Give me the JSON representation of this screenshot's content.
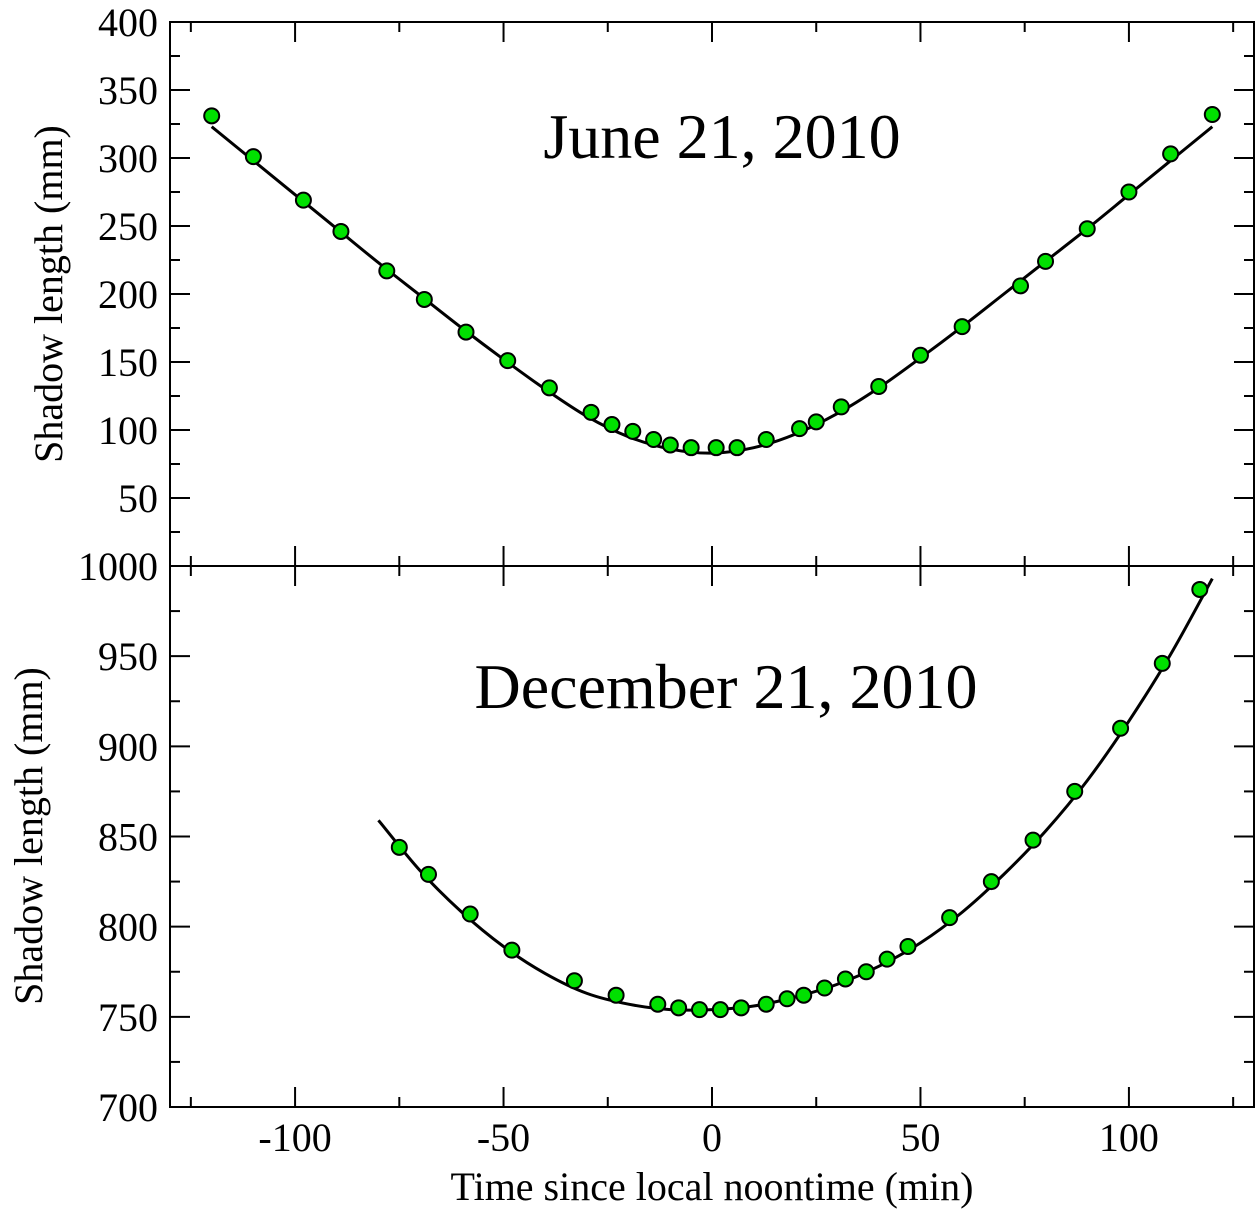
{
  "chart_data": [
    {
      "type": "scatter",
      "annotation": "June 21, 2010",
      "xlabel": "Time since local noontime (min)",
      "ylabel": "Shadow length (mm)",
      "xlim": [
        -130,
        130
      ],
      "ylim": [
        0,
        400
      ],
      "x_ticks": [
        -100,
        -50,
        0,
        50,
        100
      ],
      "y_ticks": [
        50,
        100,
        150,
        200,
        250,
        300,
        350,
        400
      ],
      "y_tick_labels": [
        "50",
        "100",
        "150",
        "200",
        "250",
        "300",
        "350",
        "400"
      ],
      "marker_color": "#00e000",
      "series": [
        {
          "kind": "points",
          "x": [
            -120,
            -110,
            -98,
            -89,
            -78,
            -69,
            -59,
            -49,
            -39,
            -29,
            -24,
            -19,
            -14,
            -10,
            -5,
            1,
            6,
            13,
            21,
            25,
            31,
            40,
            50,
            60,
            74,
            80,
            90,
            100,
            110,
            120
          ],
          "y": [
            331,
            301,
            269,
            246,
            217,
            196,
            172,
            151,
            131,
            113,
            104,
            99,
            93,
            89,
            87,
            87,
            87,
            93,
            101,
            106,
            117,
            132,
            155,
            176,
            206,
            224,
            248,
            275,
            303,
            332
          ]
        },
        {
          "kind": "fit-line",
          "x": [
            -120,
            -110,
            -100,
            -90,
            -80,
            -70,
            -60,
            -50,
            -40,
            -30,
            -20,
            -10,
            0,
            10,
            20,
            30,
            40,
            50,
            60,
            70,
            80,
            90,
            100,
            110,
            120
          ],
          "y": [
            323,
            298,
            273,
            248,
            223,
            199,
            175,
            152,
            130,
            110,
            95,
            86,
            83,
            87,
            97,
            112,
            131,
            153,
            176,
            200,
            224,
            248,
            273,
            298,
            323
          ]
        }
      ]
    },
    {
      "type": "scatter",
      "annotation": "December 21, 2010",
      "xlabel": "Time since local noontime (min)",
      "ylabel": "Shadow length (mm)",
      "xlim": [
        -130,
        130
      ],
      "ylim": [
        700,
        1000
      ],
      "x_ticks": [
        -100,
        -50,
        0,
        50,
        100
      ],
      "x_tick_labels": [
        "-100",
        "-50",
        "0",
        "50",
        "100"
      ],
      "y_ticks": [
        700,
        750,
        800,
        850,
        900,
        950,
        1000
      ],
      "y_tick_labels": [
        "700",
        "750",
        "800",
        "850",
        "900",
        "950",
        "1000"
      ],
      "marker_color": "#00e000",
      "series": [
        {
          "kind": "points",
          "x": [
            -75,
            -68,
            -58,
            -48,
            -33,
            -23,
            -13,
            -8,
            -3,
            2,
            7,
            13,
            18,
            22,
            27,
            32,
            37,
            42,
            47,
            57,
            67,
            77,
            87,
            98,
            108,
            117
          ],
          "y": [
            844,
            829,
            807,
            787,
            770,
            762,
            757,
            755,
            754,
            754,
            755,
            757,
            760,
            762,
            766,
            771,
            775,
            782,
            789,
            805,
            825,
            848,
            875,
            910,
            946,
            987
          ]
        },
        {
          "kind": "fit-line",
          "x": [
            -80,
            -70,
            -60,
            -50,
            -40,
            -30,
            -20,
            -10,
            0,
            10,
            20,
            30,
            40,
            50,
            60,
            70,
            80,
            90,
            100,
            110,
            120
          ],
          "y": [
            859,
            831,
            808,
            789,
            774,
            763,
            757,
            754,
            754,
            756,
            761,
            768,
            778,
            791,
            808,
            829,
            853,
            881,
            914,
            951,
            993
          ]
        }
      ]
    }
  ]
}
